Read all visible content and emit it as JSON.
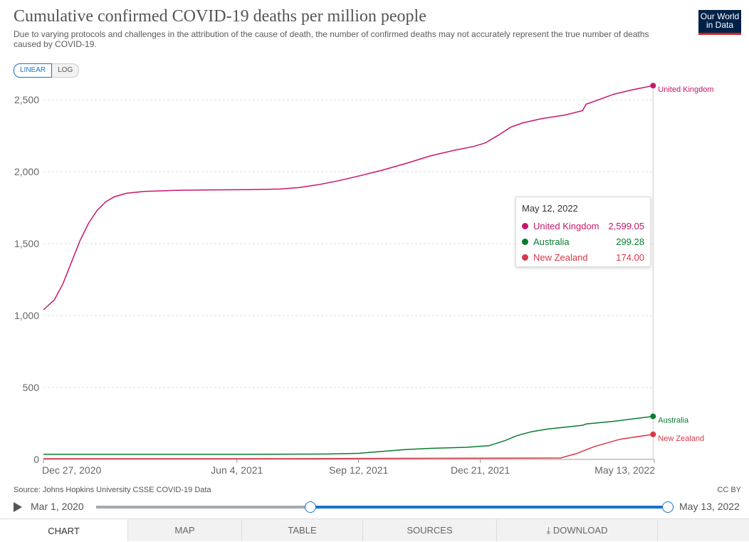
{
  "header": {
    "title": "Cumulative confirmed COVID-19 deaths per million people",
    "subtitle": "Due to varying protocols and challenges in the attribution of the cause of death, the number of confirmed deaths may not accurately represent the true number of deaths caused by COVID-19.",
    "logo_line1": "Our World",
    "logo_line2": "in Data",
    "logo_colors": {
      "background": "#002147",
      "bar": "#ce261e"
    }
  },
  "scale_toggle": {
    "linear": "LINEAR",
    "log": "LOG",
    "selected": "LINEAR"
  },
  "tooltip": {
    "date": "May 12, 2022",
    "rows": [
      {
        "name": "United Kingdom",
        "value": "2,599.05",
        "color": "#c6176b"
      },
      {
        "name": "Australia",
        "value": "299.28",
        "color": "#0a7c32"
      },
      {
        "name": "New Zealand",
        "value": "174.00",
        "color": "#d73847"
      }
    ]
  },
  "footer": {
    "source": "Source: Johns Hopkins University CSSE COVID-19 Data",
    "license": "CC BY"
  },
  "timeline": {
    "start_label": "Mar 1, 2020",
    "end_label": "May 13, 2022",
    "play_icon": "play-icon"
  },
  "tabs": [
    {
      "label": "Chart",
      "active": true
    },
    {
      "label": "Map"
    },
    {
      "label": "Table"
    },
    {
      "label": "Sources"
    },
    {
      "label": "Download",
      "icon": "download-icon"
    }
  ],
  "chart_data": {
    "type": "line",
    "title": "Cumulative confirmed COVID-19 deaths per million people",
    "ylim": [
      0,
      2600
    ],
    "yticks": [
      0,
      500,
      1000,
      1500,
      2000,
      2500
    ],
    "ytick_labels": [
      "0",
      "500",
      "1,000",
      "1,500",
      "2,000",
      "2,500"
    ],
    "x_range": [
      "2020-12-27",
      "2022-05-13"
    ],
    "xticks": [
      {
        "date": "2020-12-27",
        "label": "Dec 27, 2020"
      },
      {
        "date": "2021-06-04",
        "label": "Jun 4, 2021"
      },
      {
        "date": "2021-09-12",
        "label": "Sep 12, 2021"
      },
      {
        "date": "2021-12-21",
        "label": "Dec 21, 2021"
      },
      {
        "date": "2022-05-13",
        "label": "May 13, 2022"
      }
    ],
    "grid": true,
    "legend": "line-end labels",
    "series": [
      {
        "name": "United Kingdom",
        "color": "#c6176b",
        "points": [
          [
            "2020-12-27",
            1040
          ],
          [
            "2021-01-05",
            1110
          ],
          [
            "2021-01-12",
            1220
          ],
          [
            "2021-01-19",
            1370
          ],
          [
            "2021-01-26",
            1520
          ],
          [
            "2021-02-02",
            1640
          ],
          [
            "2021-02-09",
            1730
          ],
          [
            "2021-02-16",
            1790
          ],
          [
            "2021-02-23",
            1825
          ],
          [
            "2021-03-05",
            1850
          ],
          [
            "2021-03-20",
            1863
          ],
          [
            "2021-04-15",
            1871
          ],
          [
            "2021-05-15",
            1874
          ],
          [
            "2021-06-15",
            1876
          ],
          [
            "2021-07-10",
            1880
          ],
          [
            "2021-07-25",
            1890
          ],
          [
            "2021-08-10",
            1910
          ],
          [
            "2021-08-25",
            1935
          ],
          [
            "2021-09-12",
            1970
          ],
          [
            "2021-10-01",
            2010
          ],
          [
            "2021-10-20",
            2055
          ],
          [
            "2021-11-10",
            2110
          ],
          [
            "2021-11-30",
            2150
          ],
          [
            "2021-12-15",
            2175
          ],
          [
            "2021-12-25",
            2200
          ],
          [
            "2022-01-05",
            2255
          ],
          [
            "2022-01-15",
            2310
          ],
          [
            "2022-01-25",
            2340
          ],
          [
            "2022-02-10",
            2370
          ],
          [
            "2022-03-01",
            2395
          ],
          [
            "2022-03-15",
            2425
          ],
          [
            "2022-03-18",
            2470
          ],
          [
            "2022-03-28",
            2500
          ],
          [
            "2022-04-10",
            2540
          ],
          [
            "2022-04-25",
            2570
          ],
          [
            "2022-05-12",
            2599.05
          ]
        ]
      },
      {
        "name": "Australia",
        "color": "#0a7c32",
        "points": [
          [
            "2020-12-27",
            35
          ],
          [
            "2021-06-15",
            35
          ],
          [
            "2021-08-15",
            37
          ],
          [
            "2021-09-12",
            42
          ],
          [
            "2021-10-01",
            55
          ],
          [
            "2021-10-20",
            68
          ],
          [
            "2021-11-10",
            77
          ],
          [
            "2021-12-10",
            84
          ],
          [
            "2021-12-28",
            95
          ],
          [
            "2022-01-10",
            130
          ],
          [
            "2022-01-20",
            165
          ],
          [
            "2022-02-01",
            192
          ],
          [
            "2022-02-15",
            212
          ],
          [
            "2022-03-15",
            237
          ],
          [
            "2022-03-18",
            246
          ],
          [
            "2022-04-10",
            265
          ],
          [
            "2022-05-12",
            299.28
          ]
        ]
      },
      {
        "name": "New Zealand",
        "color": "#d73847",
        "points": [
          [
            "2020-12-27",
            5
          ],
          [
            "2021-06-15",
            5
          ],
          [
            "2021-12-01",
            8
          ],
          [
            "2022-02-25",
            10
          ],
          [
            "2022-03-10",
            40
          ],
          [
            "2022-03-25",
            90
          ],
          [
            "2022-04-15",
            140
          ],
          [
            "2022-05-12",
            174.0
          ]
        ]
      }
    ],
    "hover_date": "2022-05-12"
  }
}
